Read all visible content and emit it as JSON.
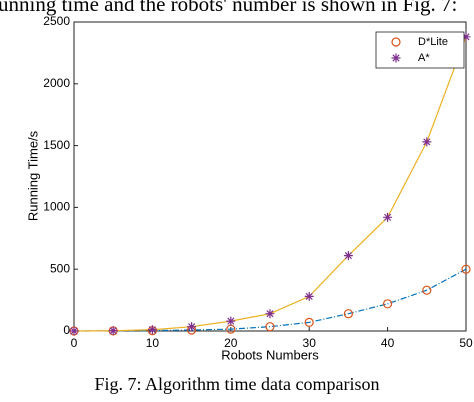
{
  "intro_text": "unning time and the robots' number is shown in Fig. 7:",
  "caption": "Fig. 7: Algorithm time data comparison",
  "chart_data": {
    "type": "line",
    "xlabel": "Robots Numbers",
    "ylabel": "Running Time/s",
    "x": [
      0,
      5,
      10,
      15,
      20,
      25,
      30,
      35,
      40,
      45,
      50
    ],
    "series": [
      {
        "name": "D*Lite",
        "marker": "circle",
        "color": "#d95319",
        "line_color": "#0072bd",
        "values": [
          0,
          1,
          3,
          8,
          15,
          35,
          70,
          140,
          220,
          330,
          500
        ]
      },
      {
        "name": "A*",
        "marker": "star",
        "color": "#7e2f8e",
        "line_color": "#edb120",
        "values": [
          0,
          2,
          10,
          35,
          80,
          140,
          280,
          610,
          920,
          1530,
          2380
        ]
      }
    ],
    "xlim": [
      0,
      50
    ],
    "xticks": [
      0,
      10,
      20,
      30,
      40,
      50
    ],
    "ylim": [
      0,
      2500
    ],
    "yticks": [
      0,
      500,
      1000,
      1500,
      2000,
      2500
    ],
    "legend": "upper right"
  }
}
